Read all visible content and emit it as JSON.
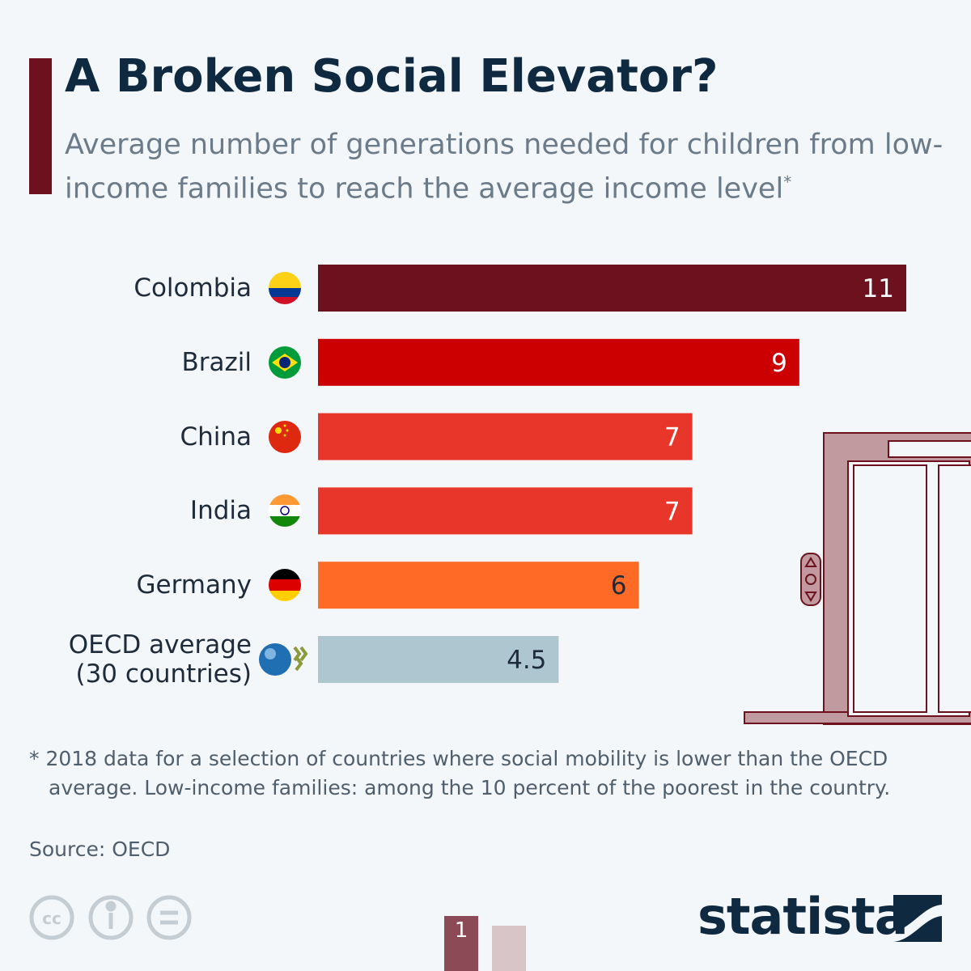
{
  "chart_data": {
    "type": "bar",
    "orientation": "horizontal",
    "title": "A Broken Social Elevator?",
    "subtitle": "Average number of generations needed for children from low-income families to reach the average income level",
    "subtitle_mark": "*",
    "categories": [
      "Colombia",
      "Brazil",
      "China",
      "India",
      "Germany",
      "OECD average\n(30 countries)"
    ],
    "values": [
      11,
      9,
      7,
      7,
      6,
      4.5
    ],
    "colors": [
      "#6d111f",
      "#cc0000",
      "#e8372a",
      "#e8372a",
      "#ff6b26",
      "#aec6d0"
    ],
    "xlim": [
      0,
      11
    ],
    "footnote": "* 2018 data for a selection of countries where social mobility is lower than the OECD average. Low-income families: among the 10 percent of the poorest in the country.",
    "source": "Source: OECD",
    "brand": "statista",
    "page": "1"
  }
}
